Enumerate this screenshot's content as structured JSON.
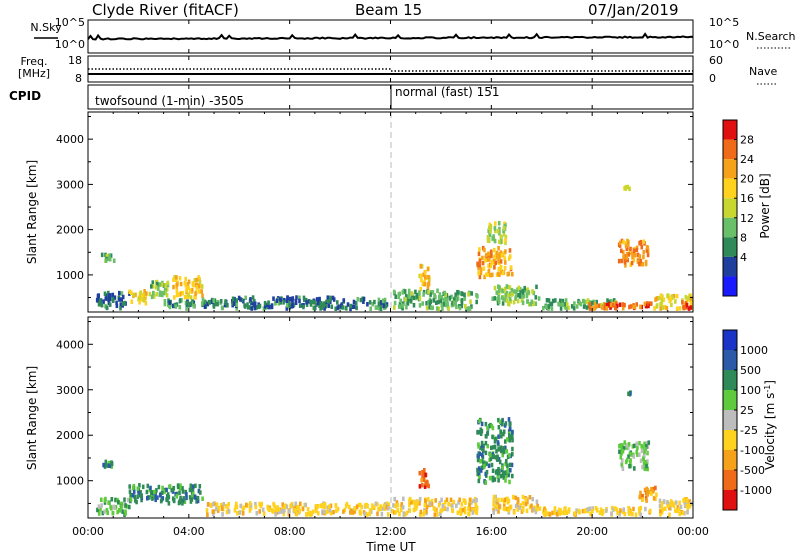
{
  "header": {
    "title": "Clyde River (fitACF)",
    "beam": "Beam 15",
    "date": "07/Jan/2019"
  },
  "status_panels": {
    "nsky_label": "N.Sky",
    "nsearch_label": "N.Search",
    "noise_ticks": [
      "10^5",
      "10^0"
    ],
    "freq_label_1": "Freq.",
    "freq_label_2": "[MHz]",
    "freq_ticks": [
      "18",
      "8"
    ],
    "nave_label": "Nave",
    "nave_ticks": [
      "60",
      "0"
    ],
    "cpid_label": "CPID",
    "cpid_segments": [
      {
        "label": "twofsound (1-min) -3505",
        "start_hour": 0,
        "end_hour": 12
      },
      {
        "label": "normal (fast) 151",
        "start_hour": 12,
        "end_hour": 24
      }
    ]
  },
  "x_axis": {
    "title": "Time UT",
    "tick_labels": [
      "00:00",
      "04:00",
      "08:00",
      "12:00",
      "16:00",
      "20:00",
      "00:00"
    ],
    "range_hours": [
      0,
      24
    ]
  },
  "colors": {
    "power": [
      "#1a1aff",
      "#1f3f9f",
      "#2e8b57",
      "#6abf69",
      "#c8d630",
      "#ffd21f",
      "#f5a21a",
      "#ef6b1a",
      "#e11010"
    ],
    "velocity": [
      "#1a34c8",
      "#2a5aa8",
      "#2e8b57",
      "#5ecb3c",
      "#bdbdbd",
      "#ffd21f",
      "#f5a21a",
      "#ef6b1a",
      "#e11010"
    ],
    "dashed_line": "#bbbbbb"
  },
  "chart_data": [
    {
      "type": "heatmap",
      "panel": "power",
      "ylabel": "Slant Range [km]",
      "y_ticks": [
        1000,
        2000,
        3000,
        4000
      ],
      "ylim": [
        180,
        4600
      ],
      "xlim_hours": [
        0,
        24
      ],
      "colorbar_label": "Power [dB]",
      "colorbar_ticks": [
        "28",
        "24",
        "20",
        "16",
        "12",
        "8",
        "4"
      ],
      "colorbar_range": [
        0,
        30
      ],
      "regions": [
        {
          "t0": 0.5,
          "t1": 1.1,
          "r0": 1250,
          "r1": 1500,
          "value": 10
        },
        {
          "t0": 0.3,
          "t1": 1.7,
          "r0": 200,
          "r1": 650,
          "value": 6
        },
        {
          "t0": 1.6,
          "t1": 2.4,
          "r0": 300,
          "r1": 700,
          "value": 18
        },
        {
          "t0": 2.4,
          "t1": 3.3,
          "r0": 450,
          "r1": 900,
          "value": 12
        },
        {
          "t0": 3.3,
          "t1": 4.6,
          "r0": 450,
          "r1": 1000,
          "value": 20
        },
        {
          "t0": 3.0,
          "t1": 5.2,
          "r0": 200,
          "r1": 500,
          "value": 8
        },
        {
          "t0": 5.2,
          "t1": 11.0,
          "r0": 200,
          "r1": 550,
          "value": 6
        },
        {
          "t0": 11.0,
          "t1": 12.0,
          "r0": 200,
          "r1": 500,
          "value": 8
        },
        {
          "t0": 13.1,
          "t1": 13.6,
          "r0": 600,
          "r1": 1250,
          "value": 20
        },
        {
          "t0": 12.0,
          "t1": 15.5,
          "r0": 200,
          "r1": 700,
          "value": 10
        },
        {
          "t0": 15.4,
          "t1": 16.9,
          "r0": 900,
          "r1": 1650,
          "value": 22
        },
        {
          "t0": 15.8,
          "t1": 16.7,
          "r0": 1650,
          "r1": 2200,
          "value": 14
        },
        {
          "t0": 16.0,
          "t1": 18.0,
          "r0": 300,
          "r1": 800,
          "value": 12
        },
        {
          "t0": 18.0,
          "t1": 21.0,
          "r0": 200,
          "r1": 500,
          "value": 10
        },
        {
          "t0": 19.8,
          "t1": 22.4,
          "r0": 200,
          "r1": 420,
          "value": 26
        },
        {
          "t0": 21.0,
          "t1": 22.3,
          "r0": 1150,
          "r1": 1800,
          "value": 24
        },
        {
          "t0": 21.2,
          "t1": 21.6,
          "r0": 2850,
          "r1": 3000,
          "value": 18
        },
        {
          "t0": 22.4,
          "t1": 24.0,
          "r0": 200,
          "r1": 600,
          "value": 18
        },
        {
          "t0": 23.5,
          "t1": 24.0,
          "r0": 200,
          "r1": 450,
          "value": 28
        }
      ]
    },
    {
      "type": "heatmap",
      "panel": "velocity",
      "ylabel": "Slant Range [km]",
      "y_ticks": [
        1000,
        2000,
        3000,
        4000
      ],
      "ylim": [
        180,
        4600
      ],
      "xlim_hours": [
        0,
        24
      ],
      "colorbar_label": "Velocity [m s^-1]",
      "colorbar_ticks": [
        "1000",
        "500",
        "100",
        "25",
        "-25",
        "-100",
        "-500",
        "-1000"
      ],
      "regions": [
        {
          "t0": 0.5,
          "t1": 1.1,
          "r0": 1250,
          "r1": 1500,
          "value": 100
        },
        {
          "t0": 0.3,
          "t1": 1.7,
          "r0": 200,
          "r1": 650,
          "value": 50
        },
        {
          "t0": 1.6,
          "t1": 4.6,
          "r0": 450,
          "r1": 950,
          "value": 120
        },
        {
          "t0": 4.6,
          "t1": 12.0,
          "r0": 200,
          "r1": 550,
          "value": -50
        },
        {
          "t0": 12.0,
          "t1": 15.5,
          "r0": 200,
          "r1": 650,
          "value": -80
        },
        {
          "t0": 13.1,
          "t1": 13.6,
          "r0": 800,
          "r1": 1300,
          "value": -900
        },
        {
          "t0": 15.4,
          "t1": 16.9,
          "r0": 900,
          "r1": 2400,
          "value": 120
        },
        {
          "t0": 16.0,
          "t1": 18.0,
          "r0": 250,
          "r1": 700,
          "value": -60
        },
        {
          "t0": 18.0,
          "t1": 22.4,
          "r0": 200,
          "r1": 450,
          "value": -90
        },
        {
          "t0": 21.0,
          "t1": 22.3,
          "r0": 1200,
          "r1": 1900,
          "value": 90
        },
        {
          "t0": 21.2,
          "t1": 21.6,
          "r0": 2850,
          "r1": 3000,
          "value": 150
        },
        {
          "t0": 21.8,
          "t1": 22.6,
          "r0": 500,
          "r1": 900,
          "value": -150
        },
        {
          "t0": 22.6,
          "t1": 24.0,
          "r0": 200,
          "r1": 650,
          "value": -100
        }
      ]
    }
  ]
}
